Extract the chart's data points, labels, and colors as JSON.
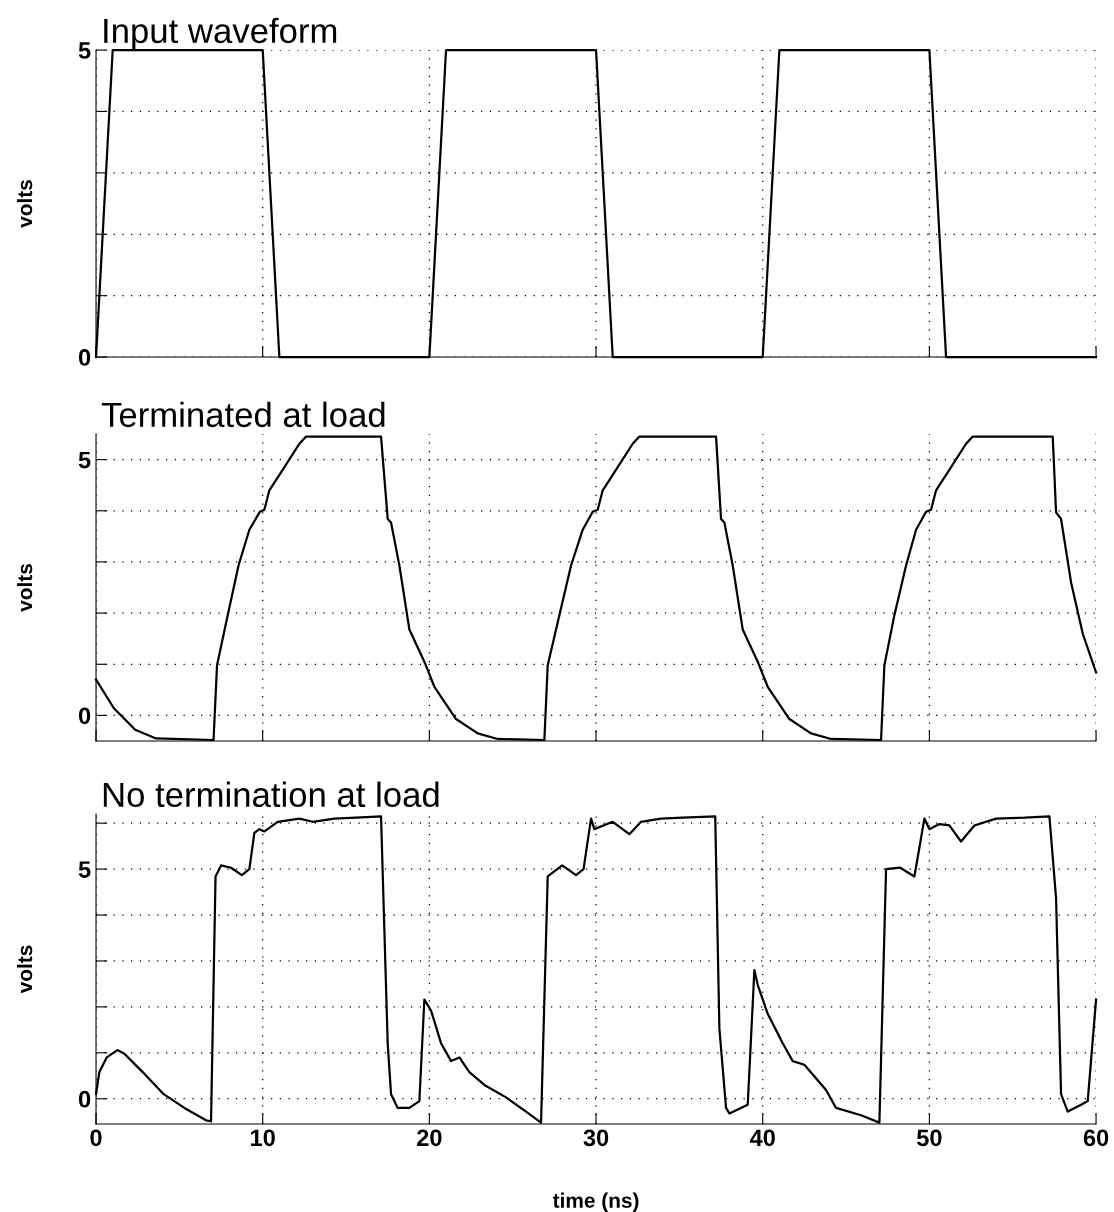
{
  "chart_data": [
    {
      "type": "line",
      "title": "Input waveform",
      "ylabel": "volts",
      "xlim": [
        0,
        60
      ],
      "xticks": [
        0,
        10,
        20,
        30,
        40,
        50,
        60
      ],
      "ylim": [
        0,
        5
      ],
      "yticks": [
        0,
        {
          "value": 1,
          "label": null
        },
        {
          "value": 2,
          "label": null
        },
        {
          "value": 3,
          "label": null
        },
        {
          "value": 4,
          "label": null
        },
        5
      ],
      "grid": true,
      "tick_labels": "y",
      "line_style": "solid",
      "marker": "none",
      "series": [
        {
          "color": "#000000",
          "x": [
            0,
            1,
            10,
            11,
            20,
            21,
            30,
            31,
            40,
            41,
            50,
            51,
            60
          ],
          "values": [
            0,
            5,
            5,
            0,
            0,
            5,
            5,
            0,
            0,
            5,
            5,
            0,
            0
          ]
        }
      ]
    },
    {
      "type": "line",
      "title": "Terminated at load",
      "ylabel": "volts",
      "xlim": [
        0,
        60
      ],
      "xticks": [
        0,
        10,
        20,
        30,
        40,
        50,
        60
      ],
      "ylim": [
        -0.5,
        5.5
      ],
      "yticks": [
        0,
        {
          "value": 1,
          "label": null
        },
        {
          "value": 2,
          "label": null
        },
        {
          "value": 3,
          "label": null
        },
        {
          "value": 4,
          "label": null
        },
        5
      ],
      "grid": true,
      "tick_labels": "y",
      "line_style": "solid",
      "marker": "none",
      "series": [
        {
          "color": "#000000",
          "x": [
            0,
            1.07,
            2.35,
            3.6,
            7.05,
            7.26,
            7.9,
            8.55,
            9.2,
            9.83,
            10.1,
            10.4,
            11.1,
            12.2,
            12.6,
            17.1,
            17.5,
            17.7,
            18.2,
            18.8,
            19.7,
            20.3,
            21.6,
            22.9,
            24.1,
            26.9,
            27.1,
            27.8,
            28.5,
            29.2,
            29.8,
            30.1,
            30.4,
            31.1,
            32.2,
            32.6,
            37.2,
            37.5,
            37.7,
            38.2,
            38.8,
            39.7,
            40.3,
            41.6,
            42.9,
            44.1,
            47.1,
            47.3,
            47.9,
            48.6,
            49.2,
            49.8,
            50.1,
            50.4,
            51.1,
            52.2,
            52.6,
            57.4,
            57.6,
            57.9,
            58.5,
            59.2,
            60
          ],
          "values": [
            0.7,
            0.14,
            -0.28,
            -0.45,
            -0.48,
            0.98,
            1.96,
            2.93,
            3.63,
            3.98,
            4.02,
            4.4,
            4.75,
            5.31,
            5.45,
            5.45,
            3.84,
            3.77,
            2.93,
            1.68,
            1.05,
            0.56,
            -0.07,
            -0.35,
            -0.46,
            -0.48,
            0.98,
            1.96,
            2.93,
            3.63,
            3.98,
            4.02,
            4.4,
            4.75,
            5.31,
            5.45,
            5.45,
            3.84,
            3.77,
            2.93,
            1.68,
            1.05,
            0.56,
            -0.07,
            -0.35,
            -0.46,
            -0.48,
            0.98,
            1.96,
            2.93,
            3.63,
            3.98,
            4.02,
            4.4,
            4.75,
            5.31,
            5.45,
            5.45,
            3.97,
            3.84,
            2.6,
            1.6,
            0.84
          ]
        }
      ]
    },
    {
      "type": "line",
      "title": "No termination at load",
      "ylabel": "volts",
      "xlabel": "time (ns)",
      "xlim": [
        0,
        60
      ],
      "xticks": [
        0,
        10,
        20,
        30,
        40,
        50,
        60
      ],
      "ylim": [
        -0.55,
        6.2
      ],
      "yticks": [
        0,
        {
          "value": 1,
          "label": null
        },
        {
          "value": 2,
          "label": null
        },
        {
          "value": 3,
          "label": null
        },
        {
          "value": 4,
          "label": null
        },
        5,
        {
          "value": 6,
          "label": null
        }
      ],
      "grid": true,
      "line_style": "solid",
      "marker": "none",
      "series": [
        {
          "color": "#000000",
          "x": [
            0,
            0.2,
            0.64,
            1.28,
            1.7,
            2.8,
            4.06,
            5.3,
            6.6,
            6.9,
            7.17,
            7.5,
            8.1,
            8.75,
            9.2,
            9.5,
            9.8,
            10.1,
            10.9,
            12.2,
            13.0,
            14.3,
            15.6,
            17.1,
            17.5,
            17.7,
            18.1,
            18.8,
            19.4,
            19.7,
            20.1,
            20.7,
            21.3,
            21.8,
            22.4,
            23.3,
            24.6,
            25.8,
            26.7,
            27.1,
            27.97,
            28.8,
            29.25,
            29.7,
            29.9,
            31.0,
            32.0,
            32.7,
            33.9,
            35.2,
            37.15,
            37.4,
            37.8,
            38.0,
            39.1,
            39.5,
            39.7,
            40.3,
            41.2,
            41.8,
            42.5,
            43.8,
            44.4,
            45.9,
            47.0,
            47.4,
            48.25,
            49.1,
            49.7,
            50.0,
            50.6,
            51.2,
            51.9,
            52.7,
            54.0,
            55.7,
            57.2,
            57.6,
            57.9,
            58.3,
            59.1,
            59.5,
            60
          ],
          "values": [
            0.1,
            0.58,
            0.9,
            1.06,
            0.98,
            0.58,
            0.1,
            -0.2,
            -0.47,
            -0.49,
            4.84,
            5.08,
            5.03,
            4.87,
            5.0,
            5.79,
            5.87,
            5.82,
            6.03,
            6.1,
            6.03,
            6.1,
            6.12,
            6.15,
            1.2,
            0.1,
            -0.2,
            -0.2,
            -0.05,
            2.16,
            1.92,
            1.21,
            0.82,
            0.9,
            0.58,
            0.3,
            0.03,
            -0.28,
            -0.52,
            4.84,
            5.08,
            4.87,
            5.0,
            6.1,
            5.87,
            6.03,
            5.76,
            6.03,
            6.1,
            6.12,
            6.15,
            1.53,
            -0.2,
            -0.32,
            -0.13,
            2.8,
            2.48,
            1.85,
            1.21,
            0.82,
            0.74,
            0.19,
            -0.2,
            -0.36,
            -0.52,
            5.0,
            5.03,
            4.84,
            6.1,
            5.87,
            5.98,
            5.95,
            5.6,
            5.95,
            6.1,
            6.12,
            6.15,
            4.37,
            0.1,
            -0.28,
            -0.13,
            -0.05,
            2.16
          ]
        }
      ]
    }
  ]
}
